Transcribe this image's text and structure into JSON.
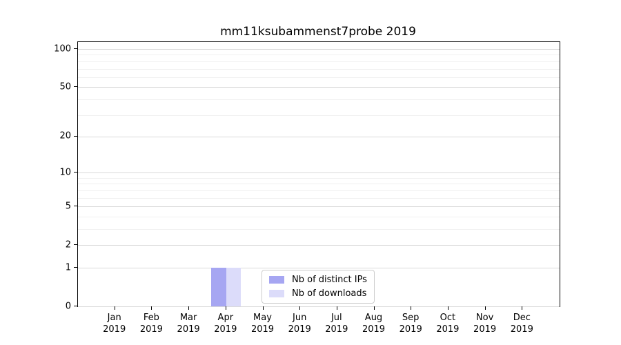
{
  "chart_data": {
    "type": "bar",
    "title": "mm11ksubammenst7probe 2019",
    "categories": [
      "Jan",
      "Feb",
      "Mar",
      "Apr",
      "May",
      "Jun",
      "Jul",
      "Aug",
      "Sep",
      "Oct",
      "Nov",
      "Dec"
    ],
    "year_label": "2019",
    "series": [
      {
        "name": "Nb of distinct IPs",
        "color": "#a6a6f2",
        "values": [
          0,
          0,
          0,
          1,
          0,
          0,
          0,
          0,
          0,
          0,
          0,
          0
        ]
      },
      {
        "name": "Nb of downloads",
        "color": "#dcdcfa",
        "values": [
          0,
          0,
          0,
          1,
          0,
          0,
          0,
          0,
          0,
          0,
          0,
          0
        ]
      }
    ],
    "yscale": "log1p",
    "yticks": [
      0,
      1,
      2,
      5,
      10,
      20,
      50,
      100
    ],
    "yticks_minor": [
      3,
      4,
      6,
      7,
      8,
      9,
      30,
      40,
      60,
      70,
      80,
      90
    ],
    "ylim": [
      0,
      113
    ],
    "xlabel": "",
    "ylabel": "",
    "grid": "horizontal",
    "legend_position": "lower-center"
  },
  "colors": {
    "grid_major": "#d9d9d9",
    "grid_minor": "#f0f0f0",
    "spine": "#000000",
    "text": "#000000",
    "legend_border": "#cccccc",
    "background": "#ffffff"
  }
}
